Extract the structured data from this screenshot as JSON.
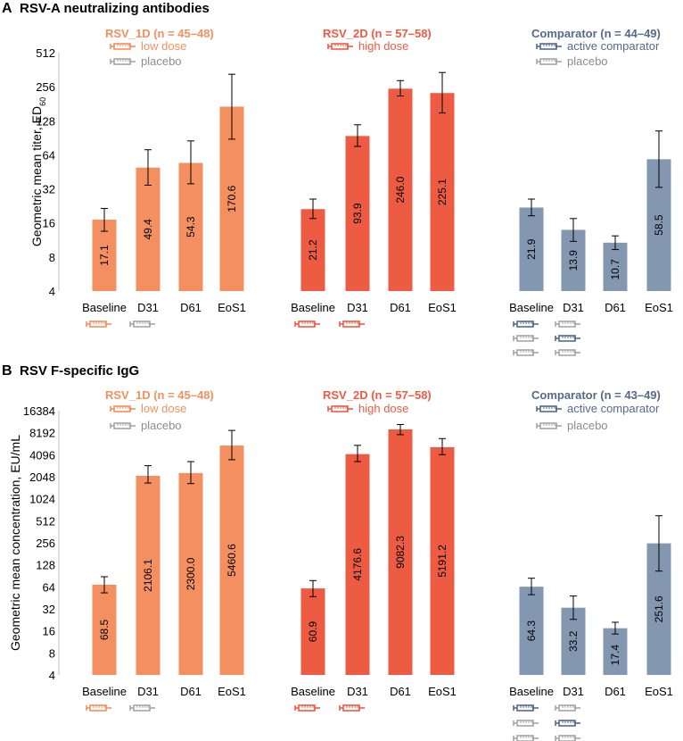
{
  "colors": {
    "low_dose": "#F4905F",
    "high_dose": "#EE5B43",
    "comparator": "#8497B0",
    "comparator_dark": "#56698A",
    "placebo": "#A6A6A6",
    "placebo_text": "#8C8C8C",
    "error_bar": "#000000"
  },
  "chart_data": [
    {
      "type": "bar",
      "panel": "A",
      "title": "RSV-A neutralizing antibodies",
      "ylabel_main": "Geometric mean titer, ED",
      "ylabel_sub": "60",
      "yscale": "log2",
      "ylim": [
        4,
        512
      ],
      "yticks": [
        "4",
        "8",
        "16",
        "32",
        "64",
        "128",
        "256",
        "512"
      ],
      "ytick_values": [
        4,
        8,
        16,
        32,
        64,
        128,
        256,
        512
      ],
      "groups": [
        {
          "name": "RSV_1D (n = 45–48)",
          "color_key": "low_dose",
          "legend": [
            {
              "label": "low dose",
              "icon": "syringe-icon",
              "color_key": "low_dose"
            },
            {
              "label": "placebo",
              "icon": "syringe-icon",
              "color_key": "placebo"
            }
          ],
          "categories": [
            "Baseline",
            "D31",
            "D61",
            "EoS1"
          ],
          "values": [
            17.1,
            49.4,
            54.3,
            170.6
          ],
          "labels": [
            "17.1",
            "49.4",
            "54.3",
            "170.6"
          ],
          "ci_low": [
            13.5,
            34.5,
            35.5,
            88.0
          ],
          "ci_high": [
            21.5,
            71.0,
            85.0,
            330.0
          ],
          "syringes": [
            [
              "low_dose"
            ],
            [
              "placebo"
            ],
            [],
            []
          ]
        },
        {
          "name": "RSV_2D (n = 57–58)",
          "color_key": "high_dose",
          "legend": [
            {
              "label": "high dose",
              "icon": "syringe-icon",
              "color_key": "high_dose"
            }
          ],
          "categories": [
            "Baseline",
            "D31",
            "D61",
            "EoS1"
          ],
          "values": [
            21.2,
            93.9,
            246.0,
            225.1
          ],
          "labels": [
            "21.2",
            "93.9",
            "246.0",
            "225.1"
          ],
          "ci_low": [
            17.5,
            76.0,
            212.0,
            150.0
          ],
          "ci_high": [
            26.0,
            118.0,
            290.0,
            342.0
          ],
          "syringes": [
            [
              "high_dose"
            ],
            [
              "high_dose"
            ],
            [],
            []
          ]
        },
        {
          "name": "Comparator (n = 44–49)",
          "color_key": "comparator",
          "title_color_key": "comparator_dark",
          "legend": [
            {
              "label": "active comparator",
              "icon": "syringe-icon",
              "color_key": "comparator_dark"
            },
            {
              "label": "placebo",
              "icon": "syringe-icon",
              "color_key": "placebo"
            }
          ],
          "categories": [
            "Baseline",
            "D31",
            "D61",
            "EoS1"
          ],
          "values": [
            21.9,
            13.9,
            10.7,
            58.5
          ],
          "labels": [
            "21.9",
            "13.9",
            "10.7",
            "58.5"
          ],
          "ci_low": [
            18.5,
            11.0,
            9.3,
            33.0
          ],
          "ci_high": [
            26.0,
            17.5,
            12.3,
            104.0
          ],
          "syringes": [
            [
              "comparator_dark",
              "placebo",
              "placebo"
            ],
            [
              "placebo",
              "comparator_dark",
              "placebo"
            ],
            [],
            []
          ]
        }
      ]
    },
    {
      "type": "bar",
      "panel": "B",
      "title": "RSV F-specific IgG",
      "ylabel_main": "Geometric mean concentration, EU/mL",
      "ylabel_sub": "",
      "yscale": "log2",
      "ylim": [
        4,
        16384
      ],
      "yticks": [
        "4",
        "8",
        "16",
        "32",
        "64",
        "128",
        "256",
        "512",
        "1024",
        "2048",
        "4096",
        "8192",
        "16384"
      ],
      "ytick_values": [
        4,
        8,
        16,
        32,
        64,
        128,
        256,
        512,
        1024,
        2048,
        4096,
        8192,
        16384
      ],
      "groups": [
        {
          "name": "RSV_1D (n = 45–48)",
          "color_key": "low_dose",
          "legend": [
            {
              "label": "low dose",
              "icon": "syringe-icon",
              "color_key": "low_dose"
            },
            {
              "label": "placebo",
              "icon": "syringe-icon",
              "color_key": "placebo"
            }
          ],
          "categories": [
            "Baseline",
            "D31",
            "D61",
            "EoS1"
          ],
          "values": [
            68.5,
            2106.1,
            2300.0,
            5460.6
          ],
          "labels": [
            "68.5",
            "2106.1",
            "2300.0",
            "5460.6"
          ],
          "ci_low": [
            53.0,
            1680.0,
            1650.0,
            3500.0
          ],
          "ci_high": [
            88.0,
            2900.0,
            3300.0,
            8800.0
          ],
          "syringes": [
            [
              "low_dose"
            ],
            [
              "placebo"
            ],
            [],
            []
          ]
        },
        {
          "name": "RSV_2D (n = 57–58)",
          "color_key": "high_dose",
          "legend": [
            {
              "label": "high dose",
              "icon": "syringe-icon",
              "color_key": "high_dose"
            }
          ],
          "categories": [
            "Baseline",
            "D31",
            "D61",
            "EoS1"
          ],
          "values": [
            60.9,
            4176.6,
            9082.3,
            5191.2
          ],
          "labels": [
            "60.9",
            "4176.6",
            "9082.3",
            "5191.2"
          ],
          "ci_low": [
            47.0,
            3300.0,
            7700.0,
            4100.0
          ],
          "ci_high": [
            78.0,
            5500.0,
            10600.0,
            6800.0
          ],
          "syringes": [
            [
              "high_dose"
            ],
            [
              "high_dose"
            ],
            [],
            []
          ]
        },
        {
          "name": "Comparator (n = 43–49)",
          "color_key": "comparator",
          "title_color_key": "comparator_dark",
          "legend": [
            {
              "label": "active comparator",
              "icon": "syringe-icon",
              "color_key": "comparator_dark"
            },
            {
              "label": "placebo",
              "icon": "syringe-icon",
              "color_key": "placebo"
            }
          ],
          "categories": [
            "Baseline",
            "D31",
            "D61",
            "EoS1"
          ],
          "values": [
            64.3,
            33.2,
            17.4,
            251.6
          ],
          "labels": [
            "64.3",
            "33.2",
            "17.4",
            "251.6"
          ],
          "ci_low": [
            50.0,
            23.0,
            14.5,
            105.0
          ],
          "ci_high": [
            84.0,
            48.0,
            21.0,
            600.0
          ],
          "syringes": [
            [
              "comparator_dark",
              "placebo",
              "placebo"
            ],
            [
              "placebo",
              "comparator_dark",
              "placebo"
            ],
            [],
            []
          ]
        }
      ]
    }
  ]
}
